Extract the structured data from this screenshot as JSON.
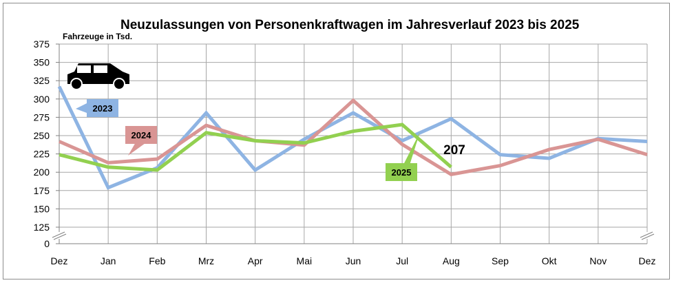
{
  "chart_data": {
    "type": "line",
    "title": "Neuzulassungen von Personenkraftwagen im Jahresverlauf 2023 bis 2025",
    "ylabel": "Fahrzeuge in Tsd.",
    "categories": [
      "Dez",
      "Jan",
      "Feb",
      "Mrz",
      "Apr",
      "Mai",
      "Jun",
      "Jul",
      "Aug",
      "Sep",
      "Okt",
      "Nov",
      "Dez"
    ],
    "y_ticks": [
      0,
      125,
      150,
      175,
      200,
      225,
      250,
      275,
      300,
      325,
      350,
      375
    ],
    "y_axis_break": true,
    "ylim": [
      125,
      375
    ],
    "grid": true,
    "series": [
      {
        "name": "2023",
        "color": "#8eb4e3",
        "values": [
          317,
          179,
          206,
          281,
          203,
          245,
          281,
          243,
          273,
          224,
          219,
          246,
          242
        ]
      },
      {
        "name": "2024",
        "color": "#d99594",
        "values": [
          242,
          213,
          218,
          264,
          243,
          237,
          298,
          238,
          197,
          209,
          231,
          245,
          224
        ]
      },
      {
        "name": "2025",
        "color": "#92d050",
        "values": [
          224,
          207,
          203,
          254,
          243,
          240,
          256,
          265,
          207,
          null,
          null,
          null,
          null
        ]
      }
    ],
    "annotations": [
      {
        "text": "207",
        "target_series": "2025",
        "target_category": "Aug"
      }
    ],
    "icon": "car-icon"
  }
}
